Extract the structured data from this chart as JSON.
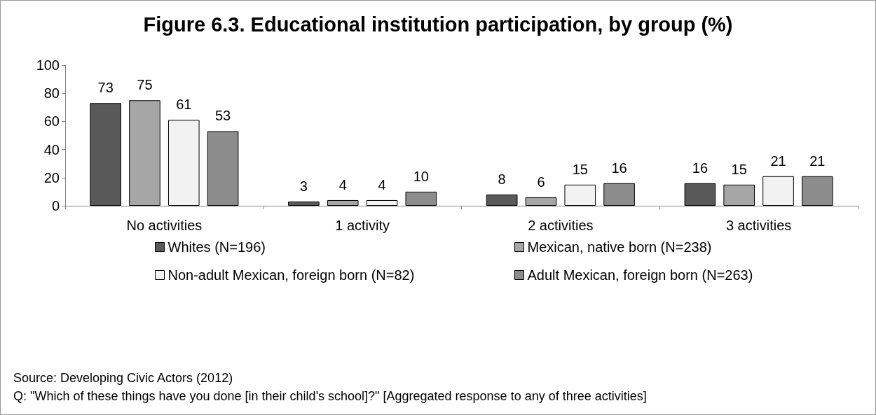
{
  "chart_data": {
    "type": "bar",
    "title": "Figure 6.3. Educational institution participation, by group (%)",
    "categories": [
      "No activities",
      "1 activity",
      "2 activities",
      "3 activities"
    ],
    "series": [
      {
        "name": "Whites (N=196)",
        "color": "#595959",
        "values": [
          73,
          3,
          8,
          16
        ]
      },
      {
        "name": "Mexican, native born (N=238)",
        "color": "#a6a6a6",
        "values": [
          75,
          4,
          6,
          15
        ]
      },
      {
        "name": "Non-adult Mexican, foreign born (N=82)",
        "color": "#f2f2f2",
        "values": [
          61,
          4,
          15,
          21
        ]
      },
      {
        "name": "Adult Mexican, foreign born (N=263)",
        "color": "#8c8c8c",
        "values": [
          53,
          10,
          16,
          21
        ]
      }
    ],
    "ylim": [
      0,
      100
    ],
    "yticks": [
      0,
      20,
      40,
      60,
      80,
      100
    ],
    "grid": false,
    "legend": "bottom",
    "data_labels": true,
    "annotations": [
      "Source: Developing Civic Actors (2012)",
      "Q: \"Which of these things have you done [in their child's school]?\" [Aggregated response to any of three activities]"
    ]
  }
}
